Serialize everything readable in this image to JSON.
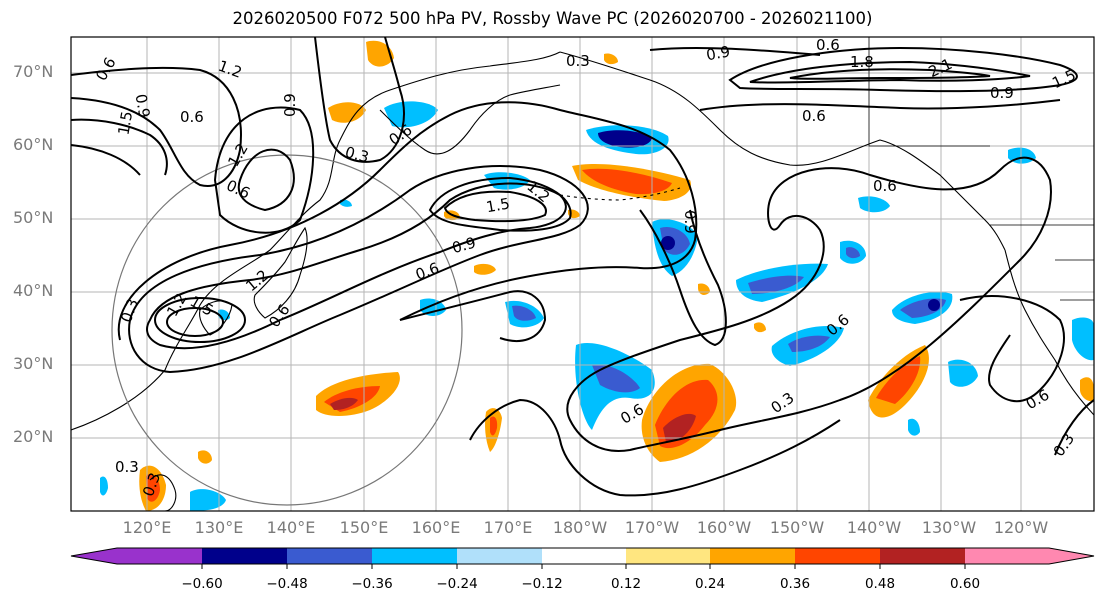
{
  "title": "2026020500 F072 500 hPa PV, Rossby Wave PC (2026020700 - 2026021100)",
  "latitude_labels": [
    "70°N",
    "60°N",
    "50°N",
    "40°N",
    "30°N",
    "20°N"
  ],
  "longitude_labels": [
    "120°E",
    "130°E",
    "140°E",
    "150°E",
    "160°E",
    "170°E",
    "180°W",
    "170°W",
    "160°W",
    "150°W",
    "140°W",
    "130°W",
    "120°W"
  ],
  "contour_labels": [
    "0.6",
    "1.2",
    "0.9",
    "1.5",
    "0.6",
    "0.9",
    "0.6",
    "0.3",
    "1.2",
    "0.6",
    "1.5",
    "1.2",
    "0.9",
    "0.6",
    "1.2",
    "1.5",
    "1.2",
    "0.3",
    "0.6",
    "0.3",
    "0.9",
    "0.6",
    "1.8",
    "2.1",
    "1.5",
    "0.9",
    "0.6",
    "0.6",
    "0.6",
    "0.3",
    "0.6",
    "0.3",
    "0.3",
    "0.9",
    "0.3",
    "0.6"
  ],
  "colorbar": {
    "tick_labels": [
      "−0.60",
      "−0.48",
      "−0.36",
      "−0.24",
      "−0.12",
      "0.12",
      "0.24",
      "0.36",
      "0.48",
      "0.60"
    ],
    "colors": [
      "#9932cc",
      "#00008b",
      "#3a5bd0",
      "#00bfff",
      "#b0e0fa",
      "#ffffff",
      "#ffe680",
      "#ffa500",
      "#ff4500",
      "#b22222",
      "#ff88b0"
    ]
  },
  "colors": {
    "neg_strong": "#00008b",
    "neg_mid": "#3a5bd0",
    "neg_light": "#00bfff",
    "pos_light": "#ffa500",
    "pos_mid": "#ff4500",
    "pos_strong": "#b22222",
    "gridline": "#b5b5b5",
    "contour": "#000000"
  }
}
